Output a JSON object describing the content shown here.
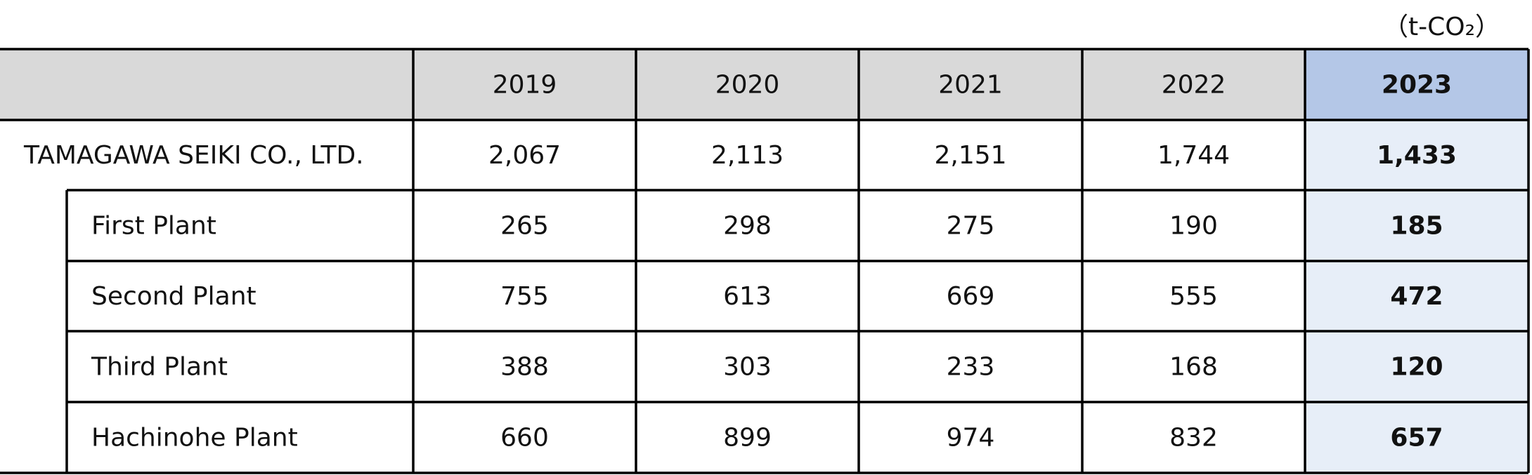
{
  "unit": "（t-CO₂）",
  "table": {
    "years": [
      "2019",
      "2020",
      "2021",
      "2022",
      "2023"
    ],
    "rows": [
      {
        "label": "TAMAGAWA SEIKI CO., LTD.",
        "values": [
          "2,067",
          "2,113",
          "2,151",
          "1,744",
          "1,433"
        ]
      },
      {
        "label": "First Plant",
        "values": [
          "265",
          "298",
          "275",
          "190",
          "185"
        ]
      },
      {
        "label": "Second Plant",
        "values": [
          "755",
          "613",
          "669",
          "555",
          "472"
        ]
      },
      {
        "label": "Third Plant",
        "values": [
          "388",
          "303",
          "233",
          "168",
          "120"
        ]
      },
      {
        "label": "Hachinohe Plant",
        "values": [
          "660",
          "899",
          "974",
          "832",
          "657"
        ]
      }
    ]
  }
}
